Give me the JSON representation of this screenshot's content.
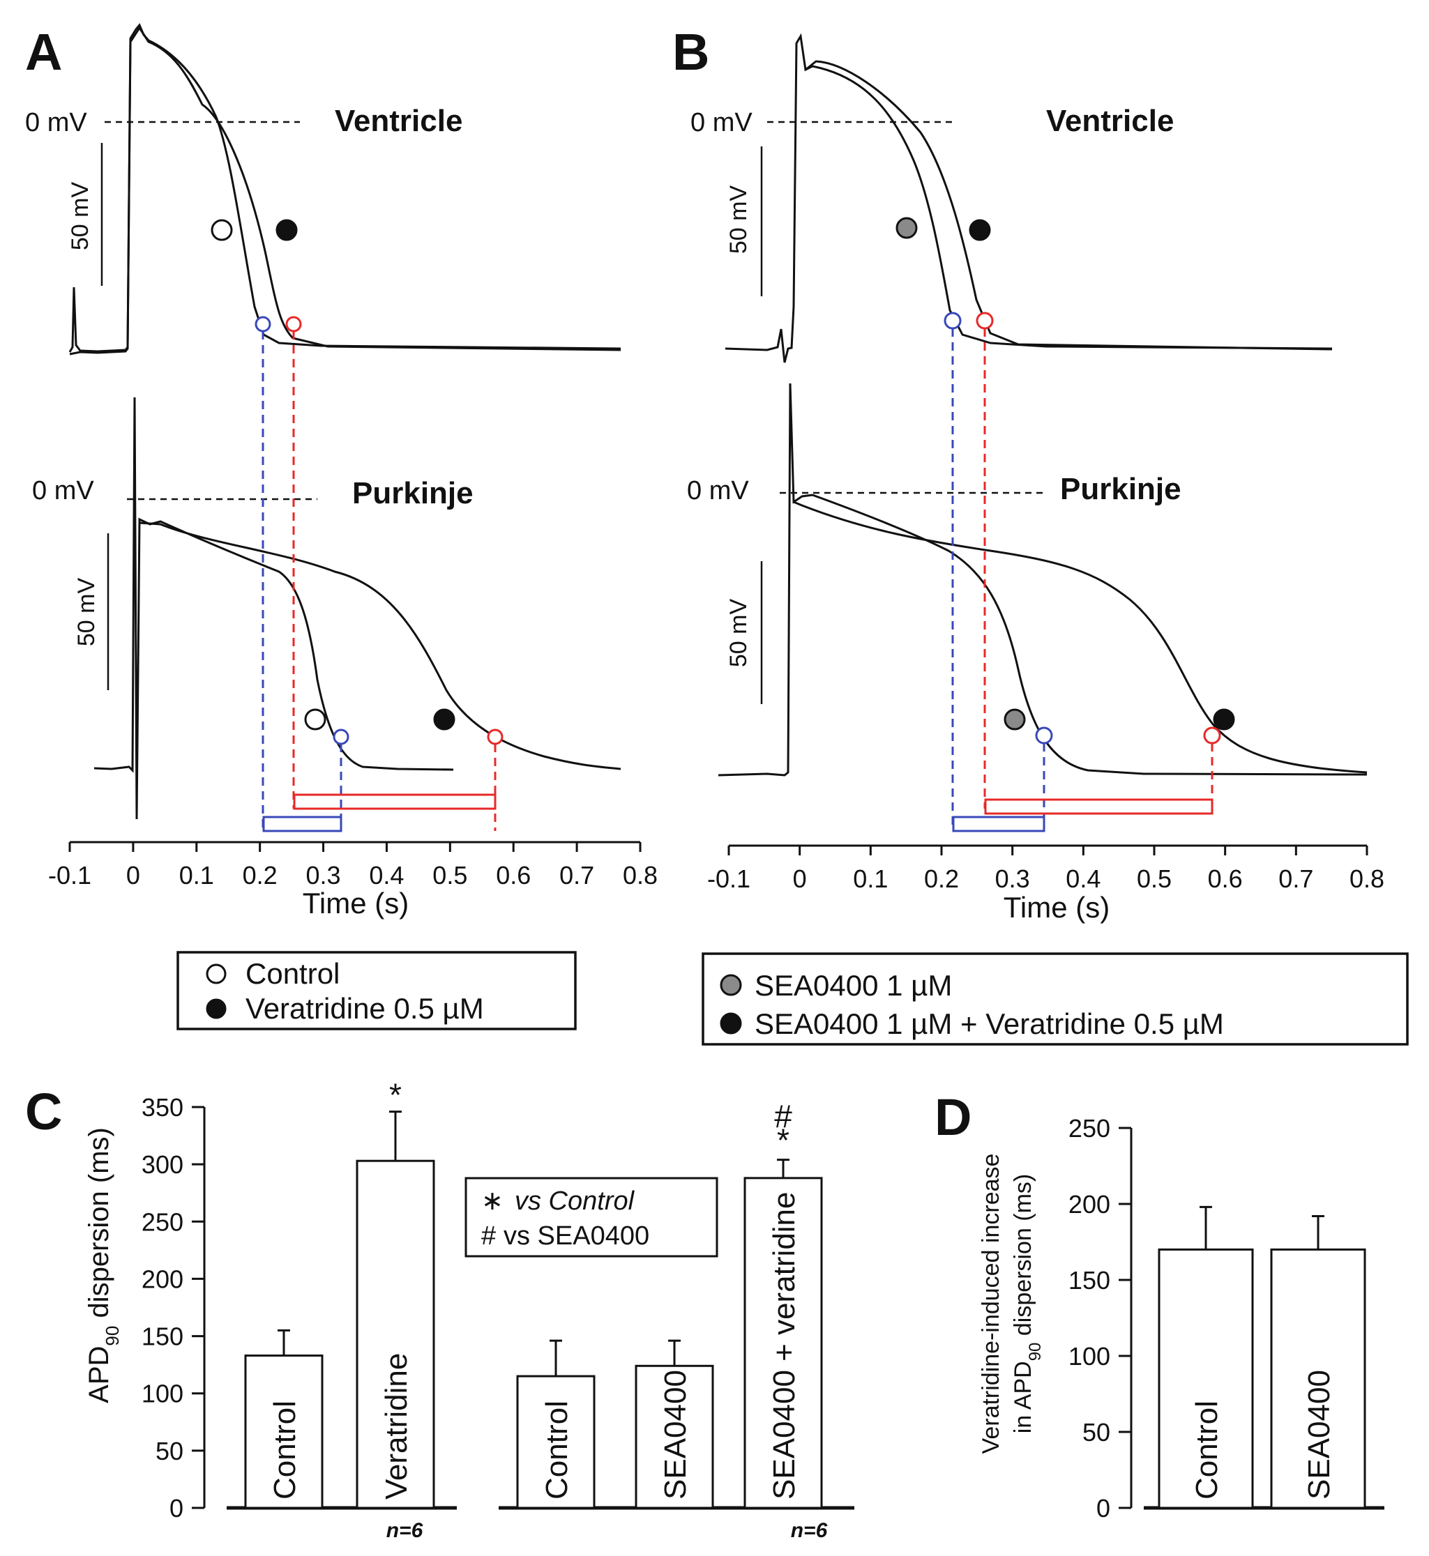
{
  "figure": {
    "panelA": {
      "letter": "A",
      "ventricle_label": "Ventricle",
      "purkinje_label": "Purkinje",
      "zero_label": "0 mV",
      "scale_label": "50 mV",
      "x_ticks": [
        "-0.1",
        "0",
        "0.1",
        "0.2",
        "0.3",
        "0.4",
        "0.5",
        "0.6",
        "0.7",
        "0.8"
      ],
      "x_title": "Time (s)",
      "legend": [
        "Control",
        "Veratridine 0.5 µM"
      ]
    },
    "panelB": {
      "letter": "B",
      "ventricle_label": "Ventricle",
      "purkinje_label": "Purkinje",
      "zero_label": "0 mV",
      "scale_label": "50 mV",
      "x_ticks": [
        "-0.1",
        "0",
        "0.1",
        "0.2",
        "0.3",
        "0.4",
        "0.5",
        "0.6",
        "0.7",
        "0.8"
      ],
      "x_title": "Time (s)",
      "legend": [
        "SEA0400 1 µM",
        "SEA0400 1 µM + Veratridine 0.5 µM"
      ]
    },
    "panelC": {
      "letter": "C",
      "key": [
        "vs Control",
        "vs  SEA0400"
      ],
      "n_labels": [
        "n=6",
        "n=6"
      ]
    },
    "panelD": {
      "letter": "D"
    },
    "colors": {
      "trace": "#111111",
      "blue": "#3848b8",
      "red": "#e82828",
      "grey_marker": "#8a8a8a"
    }
  },
  "chart_data": [
    {
      "type": "bar",
      "panel": "C",
      "ylabel_prefix": "APD",
      "ylabel_sub": "90",
      "ylabel_suffix": " dispersion (ms)",
      "ylim": [
        0,
        350
      ],
      "y_ticks": [
        "0",
        "50",
        "100",
        "150",
        "200",
        "250",
        "300",
        "350"
      ],
      "groups": [
        {
          "categories": [
            "Control",
            "Veratridine"
          ],
          "values": [
            133,
            303
          ],
          "errors": [
            22,
            43
          ],
          "significance": [
            "",
            "*"
          ]
        },
        {
          "categories": [
            "Control",
            "SEA0400",
            "SEA0400 + veratridine"
          ],
          "values": [
            115,
            124,
            288
          ],
          "errors": [
            31,
            22,
            16
          ],
          "significance": [
            "",
            "",
            "*#"
          ]
        }
      ]
    },
    {
      "type": "bar",
      "panel": "D",
      "ylabel_line1": "Veratridine-induced increase",
      "ylabel_line2_prefix": "in APD",
      "ylabel_line2_sub": "90",
      "ylabel_line2_suffix": " dispersion (ms)",
      "ylim": [
        0,
        250
      ],
      "y_ticks": [
        "0",
        "50",
        "100",
        "150",
        "200",
        "250"
      ],
      "categories": [
        "Control",
        "SEA0400"
      ],
      "values": [
        170,
        170
      ],
      "errors": [
        28,
        22
      ]
    },
    {
      "type": "line",
      "panel": "A",
      "xlabel": "Time (s)",
      "xlim": [
        -0.1,
        0.8
      ],
      "series": [
        {
          "name": "Ventricle Control",
          "apd90_s": 0.21
        },
        {
          "name": "Ventricle Veratridine 0.5 µM",
          "apd90_s": 0.26
        },
        {
          "name": "Purkinje Control",
          "apd90_s": 0.33
        },
        {
          "name": "Purkinje Veratridine 0.5 µM",
          "apd90_s": 0.57
        }
      ]
    },
    {
      "type": "line",
      "panel": "B",
      "xlabel": "Time (s)",
      "xlim": [
        -0.1,
        0.8
      ],
      "series": [
        {
          "name": "Ventricle SEA0400 1 µM",
          "apd90_s": 0.22
        },
        {
          "name": "Ventricle SEA0400 1 µM + Veratridine 0.5 µM",
          "apd90_s": 0.27
        },
        {
          "name": "Purkinje SEA0400 1 µM",
          "apd90_s": 0.35
        },
        {
          "name": "Purkinje SEA0400 1 µM + Veratridine 0.5 µM",
          "apd90_s": 0.59
        }
      ]
    }
  ]
}
